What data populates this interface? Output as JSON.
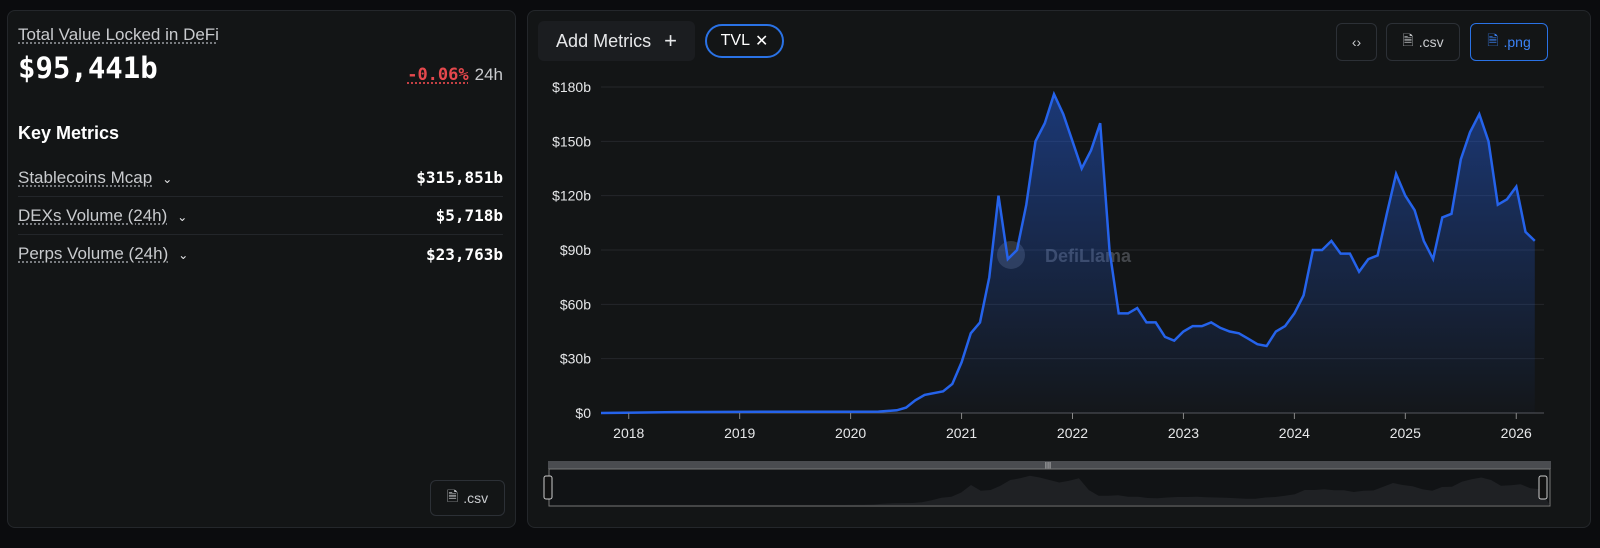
{
  "summary": {
    "title": "Total Value Locked in DeFi",
    "value": "$95,441b",
    "change": "-0.06%",
    "change_period": "24h",
    "change_color": "#e5484d"
  },
  "key_metrics": {
    "heading": "Key Metrics",
    "items": [
      {
        "label": "Stablecoins Mcap",
        "value": "$315,851b"
      },
      {
        "label": "DEXs Volume (24h)",
        "value": "$5,718b"
      },
      {
        "label": "Perps Volume (24h)",
        "value": "$23,763b"
      }
    ]
  },
  "left_csv_label": ".csv",
  "toolbar": {
    "add_metrics": "Add Metrics",
    "add_icon": "+",
    "chip": "TVL",
    "chip_close": "✕",
    "embed_icon": "‹›",
    "csv": ".csv",
    "png": ".png"
  },
  "watermark": "DefiLlama",
  "colors": {
    "accent": "#2a72e5",
    "line": "#2563eb"
  },
  "chart_data": {
    "type": "area",
    "series": [
      {
        "name": "TVL",
        "points": [
          [
            "2017-10",
            0
          ],
          [
            "2018-06",
            0.5
          ],
          [
            "2019-06",
            0.7
          ],
          [
            "2020-01",
            0.7
          ],
          [
            "2020-04",
            0.8
          ],
          [
            "2020-06",
            1.5
          ],
          [
            "2020-07",
            3
          ],
          [
            "2020-08",
            7
          ],
          [
            "2020-09",
            10
          ],
          [
            "2020-11",
            12
          ],
          [
            "2020-12",
            16
          ],
          [
            "2021-01",
            28
          ],
          [
            "2021-02",
            44
          ],
          [
            "2021-03",
            50
          ],
          [
            "2021-04",
            75
          ],
          [
            "2021-05",
            120
          ],
          [
            "2021-06",
            85
          ],
          [
            "2021-07",
            90
          ],
          [
            "2021-08",
            115
          ],
          [
            "2021-09",
            150
          ],
          [
            "2021-10",
            160
          ],
          [
            "2021-11",
            176
          ],
          [
            "2021-12",
            165
          ],
          [
            "2022-01",
            150
          ],
          [
            "2022-02",
            135
          ],
          [
            "2022-03",
            145
          ],
          [
            "2022-04",
            160
          ],
          [
            "2022-05",
            90
          ],
          [
            "2022-06",
            55
          ],
          [
            "2022-07",
            55
          ],
          [
            "2022-08",
            58
          ],
          [
            "2022-09",
            50
          ],
          [
            "2022-10",
            50
          ],
          [
            "2022-11",
            42
          ],
          [
            "2022-12",
            40
          ],
          [
            "2023-01",
            45
          ],
          [
            "2023-02",
            48
          ],
          [
            "2023-03",
            48
          ],
          [
            "2023-04",
            50
          ],
          [
            "2023-05",
            47
          ],
          [
            "2023-06",
            45
          ],
          [
            "2023-07",
            44
          ],
          [
            "2023-08",
            41
          ],
          [
            "2023-09",
            38
          ],
          [
            "2023-10",
            37
          ],
          [
            "2023-11",
            45
          ],
          [
            "2023-12",
            48
          ],
          [
            "2024-01",
            55
          ],
          [
            "2024-02",
            65
          ],
          [
            "2024-03",
            90
          ],
          [
            "2024-04",
            90
          ],
          [
            "2024-05",
            95
          ],
          [
            "2024-06",
            88
          ],
          [
            "2024-07",
            88
          ],
          [
            "2024-08",
            78
          ],
          [
            "2024-09",
            85
          ],
          [
            "2024-10",
            87
          ],
          [
            "2024-11",
            110
          ],
          [
            "2024-12",
            132
          ],
          [
            "2025-01",
            120
          ],
          [
            "2025-02",
            112
          ],
          [
            "2025-03",
            95
          ],
          [
            "2025-04",
            85
          ],
          [
            "2025-05",
            108
          ],
          [
            "2025-06",
            110
          ],
          [
            "2025-07",
            140
          ],
          [
            "2025-08",
            155
          ],
          [
            "2025-09",
            165
          ],
          [
            "2025-10",
            150
          ],
          [
            "2025-11",
            115
          ],
          [
            "2025-12",
            118
          ],
          [
            "2026-01",
            125
          ],
          [
            "2026-02",
            100
          ],
          [
            "2026-03",
            95
          ]
        ]
      }
    ],
    "y_ticks": [
      "$0",
      "$30b",
      "$60b",
      "$90b",
      "$120b",
      "$150b",
      "$180b"
    ],
    "ylim": [
      0,
      180
    ],
    "x_ticks": [
      "2018",
      "2019",
      "2020",
      "2021",
      "2022",
      "2023",
      "2024",
      "2025",
      "2026"
    ],
    "xlim": [
      "2017-10",
      "2026-03"
    ],
    "grid": true
  }
}
